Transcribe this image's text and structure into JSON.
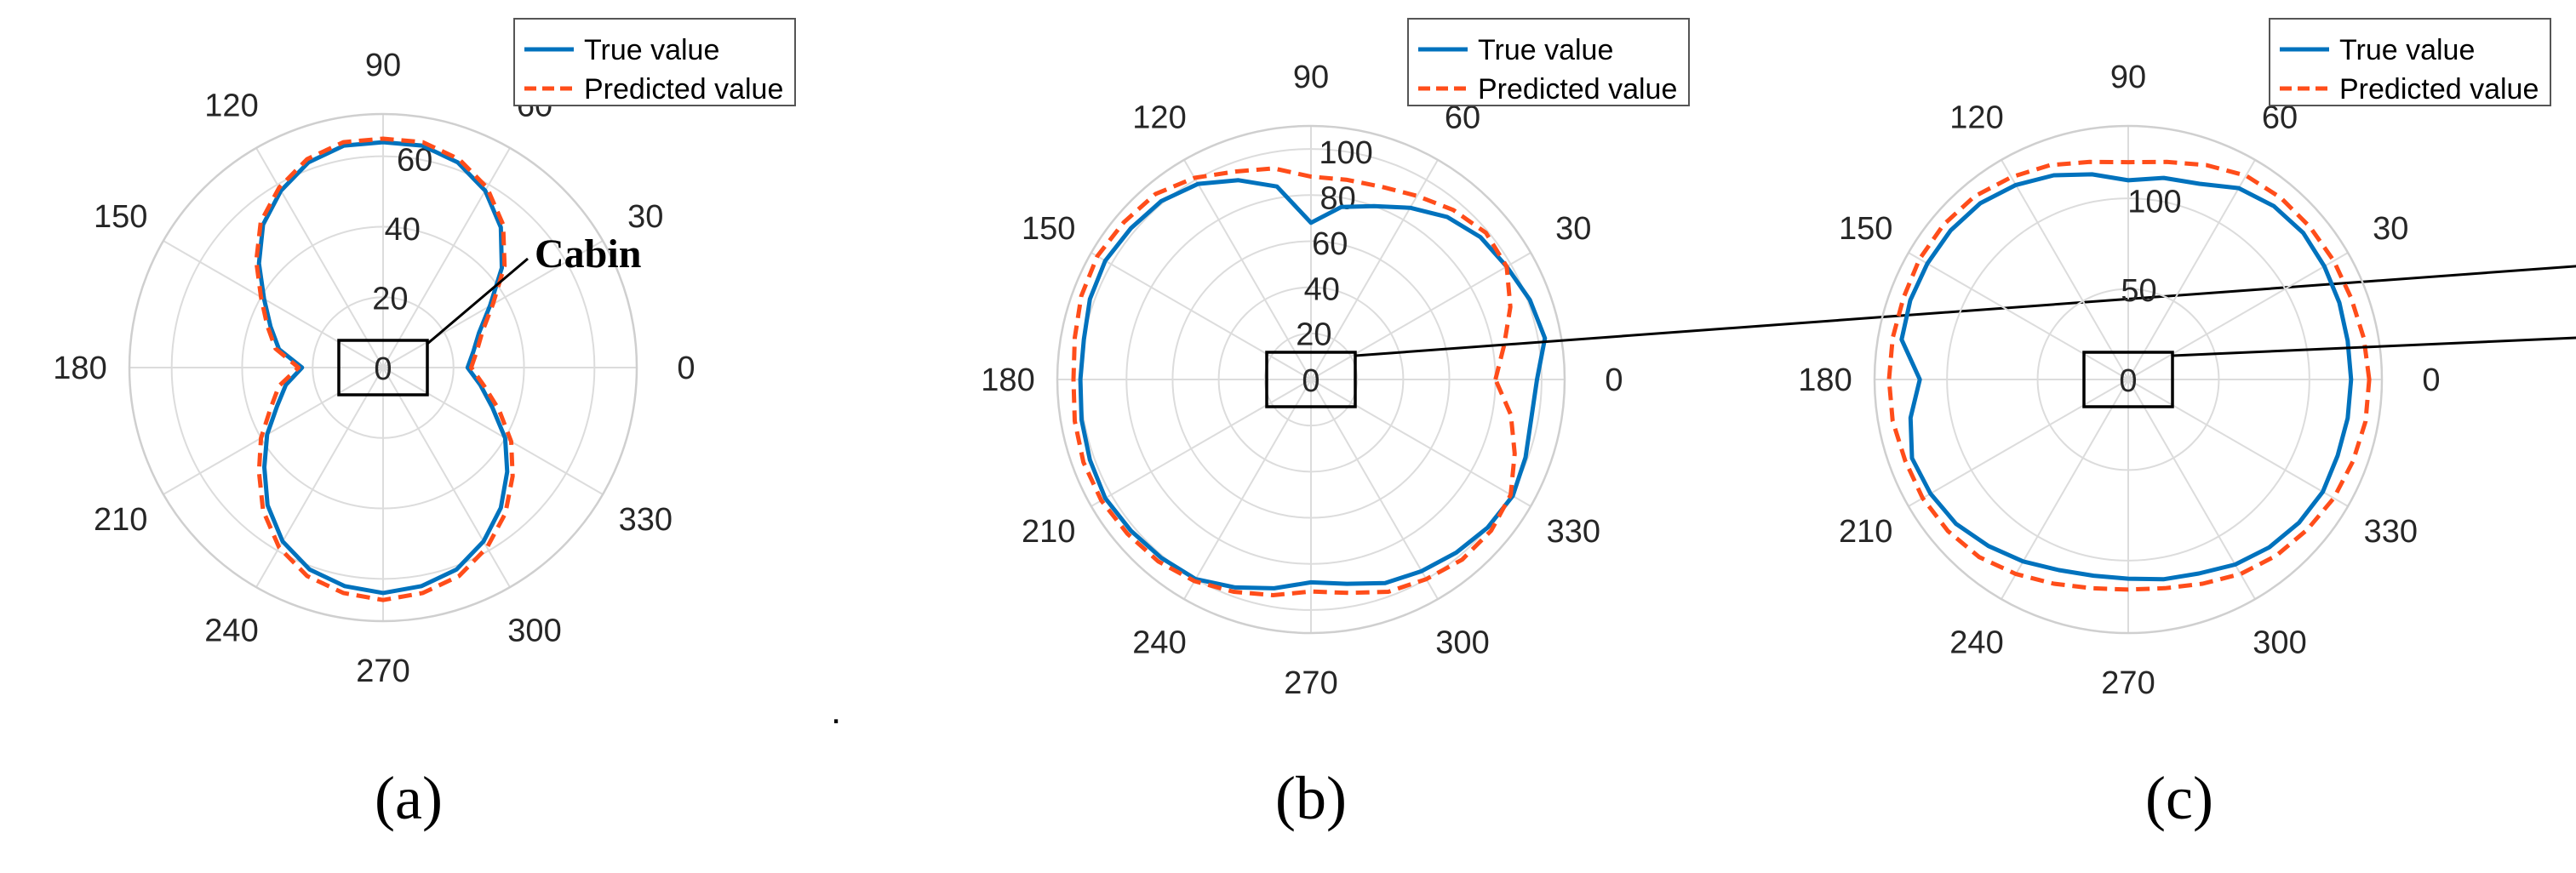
{
  "legend": {
    "true_label": "True value",
    "pred_label": "Predicted value"
  },
  "colors": {
    "true": "#0072BD",
    "pred": "#FF4D1A",
    "grid": "#dcdcdc"
  },
  "cabin_label": "Cabin",
  "center_label": "0",
  "angle_labels": [
    "0",
    "30",
    "60",
    "90",
    "120",
    "150",
    "180",
    "210",
    "240",
    "270",
    "300",
    "330"
  ],
  "chart_data": [
    {
      "type": "polar-line",
      "panel": "(a)",
      "rlim": [
        0,
        72
      ],
      "radial_ticks": [
        20,
        40,
        60
      ],
      "theta_deg": [
        0,
        10,
        20,
        30,
        40,
        50,
        60,
        70,
        80,
        90,
        100,
        110,
        120,
        130,
        140,
        150,
        160,
        170,
        180,
        190,
        200,
        210,
        220,
        230,
        240,
        250,
        260,
        270,
        280,
        290,
        300,
        310,
        320,
        330,
        340,
        350
      ],
      "series": [
        {
          "name": "True value",
          "values": [
            24,
            26,
            29,
            35,
            44,
            52,
            58,
            62,
            64,
            64,
            64,
            62,
            58,
            53,
            46,
            39,
            34,
            30,
            23,
            28,
            32,
            38,
            44,
            51,
            57,
            61,
            63,
            64,
            63,
            61,
            57,
            52,
            46,
            40,
            33,
            28
          ]
        },
        {
          "name": "Predicted value",
          "values": [
            25,
            27,
            30,
            36,
            45,
            53,
            59,
            63,
            65,
            65,
            65,
            63,
            59,
            54,
            47,
            40,
            35,
            31,
            24,
            30,
            34,
            40,
            46,
            53,
            59,
            63,
            65,
            66,
            65,
            63,
            59,
            54,
            48,
            42,
            35,
            29
          ]
        }
      ]
    },
    {
      "type": "polar-line",
      "panel": "(b)",
      "rlim": [
        0,
        110
      ],
      "radial_ticks": [
        20,
        40,
        60,
        80,
        100
      ],
      "theta_deg": [
        0,
        10,
        20,
        30,
        40,
        50,
        60,
        70,
        80,
        90,
        100,
        110,
        120,
        130,
        140,
        150,
        160,
        170,
        180,
        190,
        200,
        210,
        220,
        230,
        240,
        250,
        260,
        270,
        280,
        290,
        300,
        310,
        320,
        330,
        340,
        350
      ],
      "series": [
        {
          "name": "True value",
          "values": [
            98,
            103,
            101,
            98,
            96,
            92,
            86,
            80,
            76,
            68,
            85,
            92,
            98,
            101,
            102,
            103,
            102,
            100,
            100,
            101,
            102,
            103,
            102,
            101,
            100,
            96,
            92,
            88,
            90,
            94,
            96,
            98,
            100,
            101,
            99,
            97
          ]
        },
        {
          "name": "Predicted value",
          "values": [
            80,
            85,
            92,
            98,
            99,
            96,
            92,
            89,
            88,
            88,
            93,
            96,
            101,
            105,
            106,
            107,
            106,
            104,
            103,
            104,
            105,
            105,
            104,
            103,
            101,
            98,
            95,
            92,
            94,
            98,
            100,
            102,
            102,
            100,
            94,
            88
          ]
        }
      ]
    },
    {
      "type": "polar-line",
      "panel": "(c)",
      "rlim": [
        0,
        140
      ],
      "radial_ticks": [
        50,
        100
      ],
      "theta_deg": [
        0,
        10,
        20,
        30,
        40,
        50,
        60,
        70,
        80,
        90,
        100,
        110,
        120,
        130,
        140,
        150,
        160,
        170,
        180,
        190,
        200,
        210,
        220,
        230,
        240,
        250,
        260,
        270,
        280,
        290,
        300,
        310,
        320,
        330,
        340,
        350
      ],
      "series": [
        {
          "name": "True value",
          "values": [
            123,
            123,
            124,
            125,
            126,
            125,
            122,
            115,
            113,
            110,
            115,
            120,
            124,
            127,
            128,
            128,
            128,
            127,
            115,
            122,
            127,
            126,
            124,
            120,
            116,
            112,
            110,
            110,
            112,
            114,
            118,
            121,
            123,
            124,
            123,
            123
          ]
        },
        {
          "name": "Predicted value",
          "values": [
            133,
            132,
            131,
            131,
            131,
            131,
            130,
            126,
            122,
            120,
            122,
            126,
            129,
            132,
            133,
            133,
            132,
            132,
            132,
            132,
            131,
            131,
            130,
            128,
            124,
            120,
            117,
            116,
            117,
            120,
            124,
            127,
            129,
            131,
            132,
            133
          ]
        }
      ]
    }
  ],
  "dot": "."
}
